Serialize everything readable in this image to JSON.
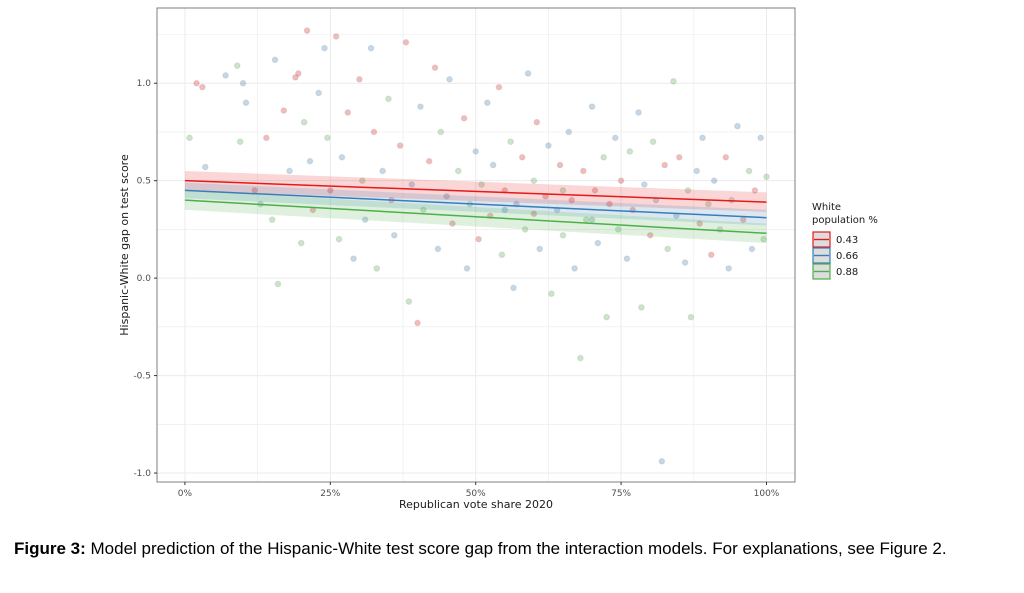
{
  "chart_data": {
    "type": "scatter",
    "xlabel": "Republican vote share 2020",
    "ylabel": "Hispanic-White gap on test score",
    "xlim": [
      -4.8,
      104.9
    ],
    "ylim": [
      -1.046,
      1.386
    ],
    "x_ticks": [
      {
        "v": 0,
        "label": "0%"
      },
      {
        "v": 25,
        "label": "25%"
      },
      {
        "v": 50,
        "label": "50%"
      },
      {
        "v": 75,
        "label": "75%"
      },
      {
        "v": 100,
        "label": "100%"
      }
    ],
    "y_ticks": [
      {
        "v": -1,
        "label": "-1.0"
      },
      {
        "v": -0.5,
        "label": "-0.5"
      },
      {
        "v": 0,
        "label": "0.0"
      },
      {
        "v": 0.5,
        "label": "0.5"
      },
      {
        "v": 1,
        "label": "1.0"
      }
    ],
    "grid": true,
    "legend": {
      "title_line1": "White",
      "title_line2": "population %",
      "position": "right"
    },
    "series": [
      {
        "name": "0.43",
        "color": "#e41a1c",
        "line": [
          [
            0,
            0.5
          ],
          [
            100,
            0.39
          ]
        ],
        "band": 0.05
      },
      {
        "name": "0.66",
        "color": "#377eb8",
        "line": [
          [
            0,
            0.45
          ],
          [
            100,
            0.31
          ]
        ],
        "band": 0.04
      },
      {
        "name": "0.88",
        "color": "#4daf4a",
        "line": [
          [
            0,
            0.4
          ],
          [
            100,
            0.23
          ]
        ],
        "band": 0.05
      }
    ],
    "points": [
      [
        0.8,
        0.72,
        2
      ],
      [
        2,
        1.0,
        0
      ],
      [
        3,
        0.98,
        0
      ],
      [
        3.5,
        0.57,
        1
      ],
      [
        7,
        1.04,
        1
      ],
      [
        9,
        1.09,
        2
      ],
      [
        9.5,
        0.7,
        2
      ],
      [
        10,
        1.0,
        1
      ],
      [
        10.5,
        0.9,
        1
      ],
      [
        12,
        0.45,
        0
      ],
      [
        13,
        0.38,
        1
      ],
      [
        14,
        0.72,
        0
      ],
      [
        15,
        0.3,
        2
      ],
      [
        15.5,
        1.12,
        1
      ],
      [
        16,
        -0.03,
        2
      ],
      [
        17,
        0.86,
        0
      ],
      [
        18,
        0.55,
        1
      ],
      [
        19,
        1.03,
        0
      ],
      [
        19.5,
        1.05,
        0
      ],
      [
        20,
        0.18,
        2
      ],
      [
        20.5,
        0.8,
        2
      ],
      [
        21,
        1.27,
        0
      ],
      [
        21.5,
        0.6,
        1
      ],
      [
        22,
        0.35,
        0
      ],
      [
        23,
        0.95,
        1
      ],
      [
        24,
        1.18,
        1
      ],
      [
        24.5,
        0.72,
        2
      ],
      [
        25,
        0.45,
        0
      ],
      [
        26,
        1.24,
        0
      ],
      [
        26.5,
        0.2,
        2
      ],
      [
        27,
        0.62,
        1
      ],
      [
        28,
        0.85,
        0
      ],
      [
        29,
        0.1,
        1
      ],
      [
        30,
        1.02,
        0
      ],
      [
        30.5,
        0.5,
        2
      ],
      [
        31,
        0.3,
        1
      ],
      [
        32,
        1.18,
        1
      ],
      [
        32.5,
        0.75,
        0
      ],
      [
        33,
        0.05,
        2
      ],
      [
        34,
        0.55,
        1
      ],
      [
        35,
        0.92,
        2
      ],
      [
        35.5,
        0.4,
        0
      ],
      [
        36,
        0.22,
        1
      ],
      [
        37,
        0.68,
        0
      ],
      [
        38,
        1.21,
        0
      ],
      [
        38.5,
        -0.12,
        2
      ],
      [
        39,
        0.48,
        1
      ],
      [
        40,
        -0.23,
        0
      ],
      [
        40.5,
        0.88,
        1
      ],
      [
        41,
        0.35,
        2
      ],
      [
        42,
        0.6,
        0
      ],
      [
        43,
        1.08,
        0
      ],
      [
        43.5,
        0.15,
        1
      ],
      [
        44,
        0.75,
        2
      ],
      [
        45,
        0.42,
        1
      ],
      [
        45.5,
        1.02,
        1
      ],
      [
        46,
        0.28,
        0
      ],
      [
        47,
        0.55,
        2
      ],
      [
        48,
        0.82,
        0
      ],
      [
        48.5,
        0.05,
        1
      ],
      [
        49,
        0.38,
        2
      ],
      [
        50,
        0.65,
        1
      ],
      [
        50.5,
        0.2,
        0
      ],
      [
        51,
        0.48,
        2
      ],
      [
        52,
        0.9,
        1
      ],
      [
        52.5,
        0.32,
        0
      ],
      [
        53,
        0.58,
        1
      ],
      [
        54,
        0.98,
        0
      ],
      [
        54.5,
        0.12,
        2
      ],
      [
        55,
        0.45,
        0
      ],
      [
        56,
        0.7,
        2
      ],
      [
        56.5,
        -0.05,
        1
      ],
      [
        57,
        0.38,
        1
      ],
      [
        58,
        0.62,
        0
      ],
      [
        58.5,
        0.25,
        2
      ],
      [
        59,
        1.05,
        1
      ],
      [
        60,
        0.5,
        2
      ],
      [
        60.5,
        0.8,
        0
      ],
      [
        61,
        0.15,
        1
      ],
      [
        62,
        0.42,
        0
      ],
      [
        62.5,
        0.68,
        1
      ],
      [
        63,
        -0.08,
        2
      ],
      [
        64,
        0.35,
        1
      ],
      [
        64.5,
        0.58,
        0
      ],
      [
        65,
        0.22,
        2
      ],
      [
        66,
        0.75,
        1
      ],
      [
        66.5,
        0.4,
        0
      ],
      [
        67,
        0.05,
        1
      ],
      [
        68,
        -0.41,
        2
      ],
      [
        68.5,
        0.55,
        0
      ],
      [
        69,
        0.3,
        2
      ],
      [
        70,
        0.88,
        1
      ],
      [
        70.5,
        0.45,
        0
      ],
      [
        71,
        0.18,
        1
      ],
      [
        72,
        0.62,
        2
      ],
      [
        72.5,
        -0.2,
        2
      ],
      [
        73,
        0.38,
        0
      ],
      [
        74,
        0.72,
        1
      ],
      [
        74.5,
        0.25,
        2
      ],
      [
        75,
        0.5,
        0
      ],
      [
        76,
        0.1,
        1
      ],
      [
        76.5,
        0.65,
        2
      ],
      [
        77,
        0.35,
        0
      ],
      [
        78,
        0.85,
        1
      ],
      [
        78.5,
        -0.15,
        2
      ],
      [
        79,
        0.48,
        1
      ],
      [
        80,
        0.22,
        0
      ],
      [
        80.5,
        0.7,
        2
      ],
      [
        81,
        0.4,
        1
      ],
      [
        82,
        -0.94,
        1
      ],
      [
        82.5,
        0.58,
        0
      ],
      [
        83,
        0.15,
        2
      ],
      [
        84,
        1.01,
        2
      ],
      [
        84.5,
        0.32,
        1
      ],
      [
        85,
        0.62,
        0
      ],
      [
        86,
        0.08,
        1
      ],
      [
        86.5,
        0.45,
        2
      ],
      [
        87,
        -0.2,
        2
      ],
      [
        88,
        0.55,
        1
      ],
      [
        88.5,
        0.28,
        0
      ],
      [
        89,
        0.72,
        1
      ],
      [
        90,
        0.38,
        2
      ],
      [
        90.5,
        0.12,
        0
      ],
      [
        91,
        0.5,
        1
      ],
      [
        92,
        0.25,
        2
      ],
      [
        93,
        0.62,
        0
      ],
      [
        93.5,
        0.05,
        1
      ],
      [
        94,
        0.4,
        2
      ],
      [
        95,
        0.78,
        1
      ],
      [
        96,
        0.3,
        0
      ],
      [
        97,
        0.55,
        2
      ],
      [
        97.5,
        0.15,
        1
      ],
      [
        98,
        0.45,
        0
      ],
      [
        99,
        0.72,
        1
      ],
      [
        99.5,
        0.2,
        2
      ],
      [
        100,
        0.52,
        2
      ],
      [
        55,
        0.35,
        1
      ],
      [
        60,
        0.33,
        0
      ],
      [
        65,
        0.45,
        2
      ],
      [
        70,
        0.3,
        1
      ]
    ]
  },
  "caption": {
    "label": "Figure 3:",
    "text": " Model prediction of the Hispanic-White test score gap from the interaction models. For explanations, see Figure 2."
  }
}
